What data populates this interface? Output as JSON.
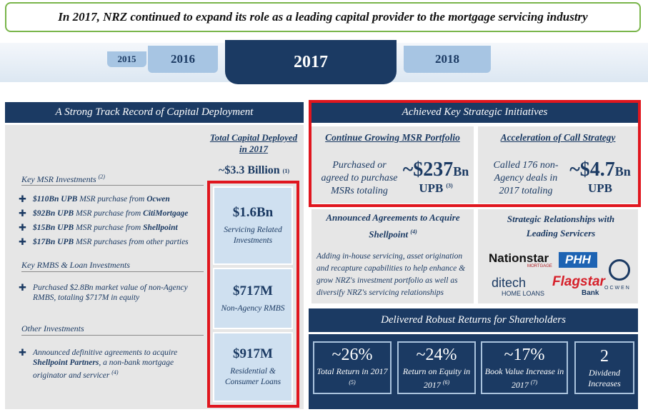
{
  "banner": "In 2017, NRZ continued to expand its role as a leading capital provider to the mortgage servicing industry",
  "timeline": [
    "2015",
    "2016",
    "2017",
    "2018"
  ],
  "left": {
    "title": "A Strong Track Record of Capital Deployment",
    "capital_header": "Total Capital Deployed in 2017",
    "capital_total": "~$3.3 Billion",
    "capital_note": "(1)",
    "sections": [
      {
        "title": "Key MSR Investments",
        "note": "(2)",
        "items": [
          [
            {
              "t": "$110Bn UPB",
              "b": true
            },
            {
              "t": " MSR purchase from "
            },
            {
              "t": "Ocwen",
              "b": true
            }
          ],
          [
            {
              "t": "$92Bn UPB",
              "b": true
            },
            {
              "t": " MSR purchase from "
            },
            {
              "t": "CitiMortgage",
              "b": true
            }
          ],
          [
            {
              "t": "$15Bn UPB",
              "b": true
            },
            {
              "t": " MSR purchase from "
            },
            {
              "t": "Shellpoint",
              "b": true
            }
          ],
          [
            {
              "t": "$17Bn UPB",
              "b": true
            },
            {
              "t": " MSR purchases from other parties"
            }
          ]
        ]
      },
      {
        "title": "Key RMBS & Loan Investments",
        "items": [
          [
            {
              "t": "Purchased $2.8Bn market value of non-Agency RMBS, totaling $717M in equity"
            }
          ]
        ]
      },
      {
        "title": "Other Investments",
        "items": [
          [
            {
              "t": "Announced definitive agreements to acquire "
            },
            {
              "t": "Shellpoint Partners",
              "b": true
            },
            {
              "t": ", a non-bank mortgage originator and servicer "
            },
            {
              "t": "(4)",
              "sup": true
            }
          ]
        ]
      }
    ],
    "boxes": [
      {
        "value": "$1.6Bn",
        "label": "Servicing Related Investments"
      },
      {
        "value": "$717M",
        "label": "Non-Agency RMBS"
      },
      {
        "value": "$917M",
        "label": "Residential & Consumer Loans"
      }
    ]
  },
  "right": {
    "title": "Achieved Key Strategic Initiatives",
    "initiatives": [
      {
        "title": "Continue Growing MSR Portfolio",
        "text": "Purchased or agreed to purchase MSRs totaling",
        "value": "~$237",
        "unit": "Bn",
        "sub": "UPB",
        "note": "(3)"
      },
      {
        "title": "Acceleration of Call Strategy",
        "text": "Called 176 non-Agency deals in 2017 totaling",
        "value": "~$4.7",
        "unit": "Bn",
        "sub": "UPB"
      }
    ],
    "shellpoint": {
      "title": "Announced Agreements to Acquire Shellpoint",
      "note": "(4)",
      "text": "Adding in-house servicing, asset origination and recapture capabilities to help enhance & grow NRZ's investment portfolio as well as diversify NRZ's servicing relationships"
    },
    "relationships": {
      "title": "Strategic Relationships with Leading Servicers",
      "logos": [
        "Nationstar",
        "MORTGAGE",
        "PHH",
        "ditech",
        "HOME LOANS",
        "Flagstar",
        "Bank",
        "OCWEN"
      ]
    },
    "returns": {
      "title": "Delivered Robust Returns for Shareholders",
      "cards": [
        {
          "value": "~26%",
          "label": "Total Return in 2017",
          "note": "(5)"
        },
        {
          "value": "~24%",
          "label": "Return on Equity in 2017",
          "note": "(6)"
        },
        {
          "value": "~17%",
          "label": "Book Value Increase in 2017",
          "note": "(7)"
        },
        {
          "value": "2",
          "label": "Dividend Increases"
        }
      ]
    }
  }
}
